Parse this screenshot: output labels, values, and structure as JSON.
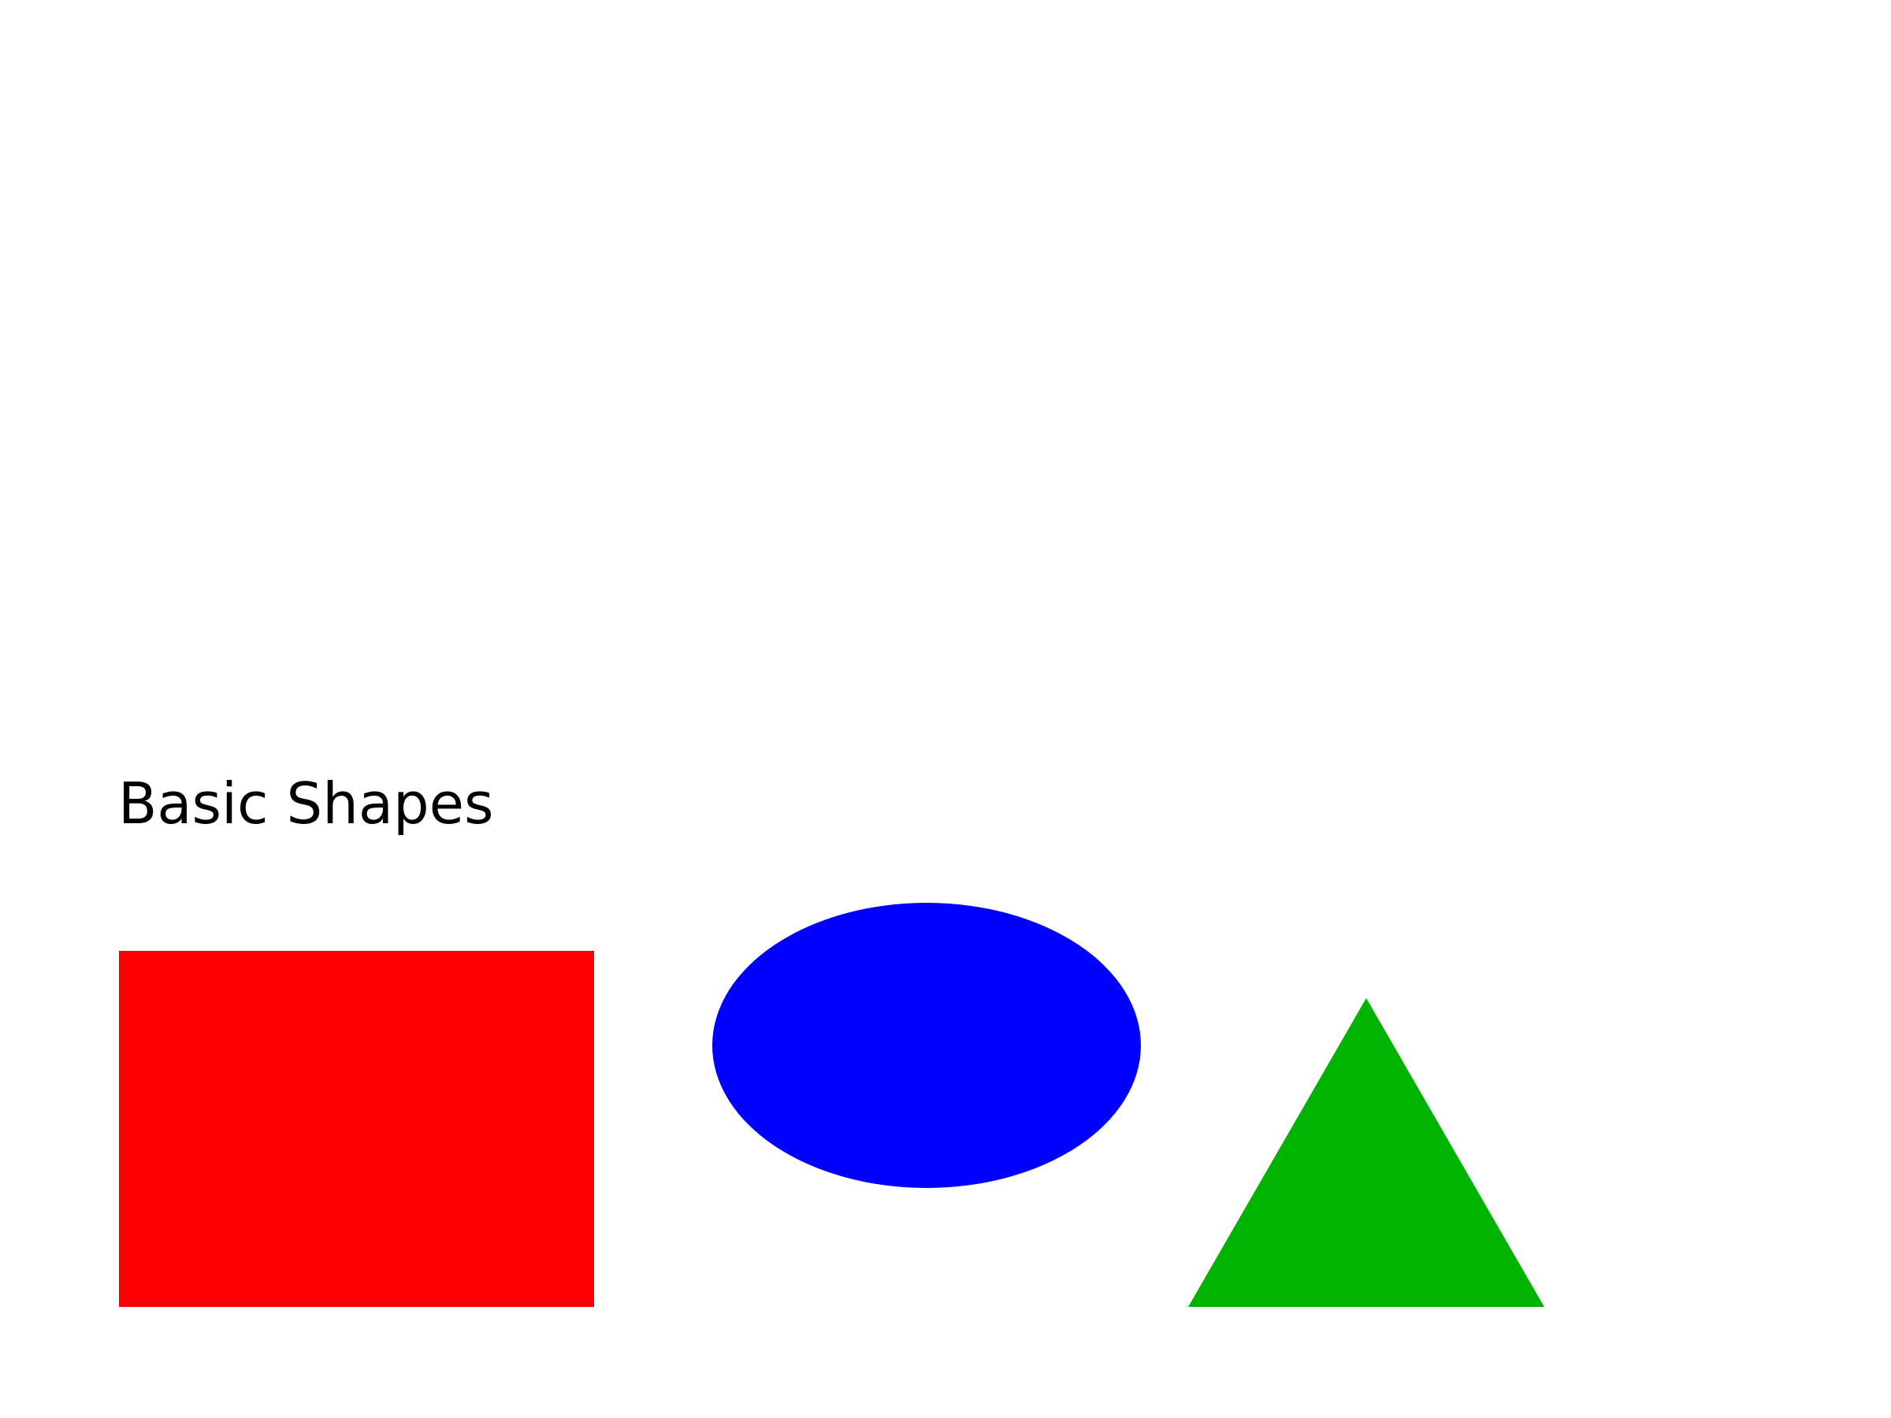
{
  "title": "Basic Shapes",
  "shapes": [
    {
      "name": "rectangle",
      "color": "#ff0000"
    },
    {
      "name": "ellipse",
      "color": "#0000ff"
    },
    {
      "name": "triangle",
      "color": "#00b300"
    }
  ]
}
